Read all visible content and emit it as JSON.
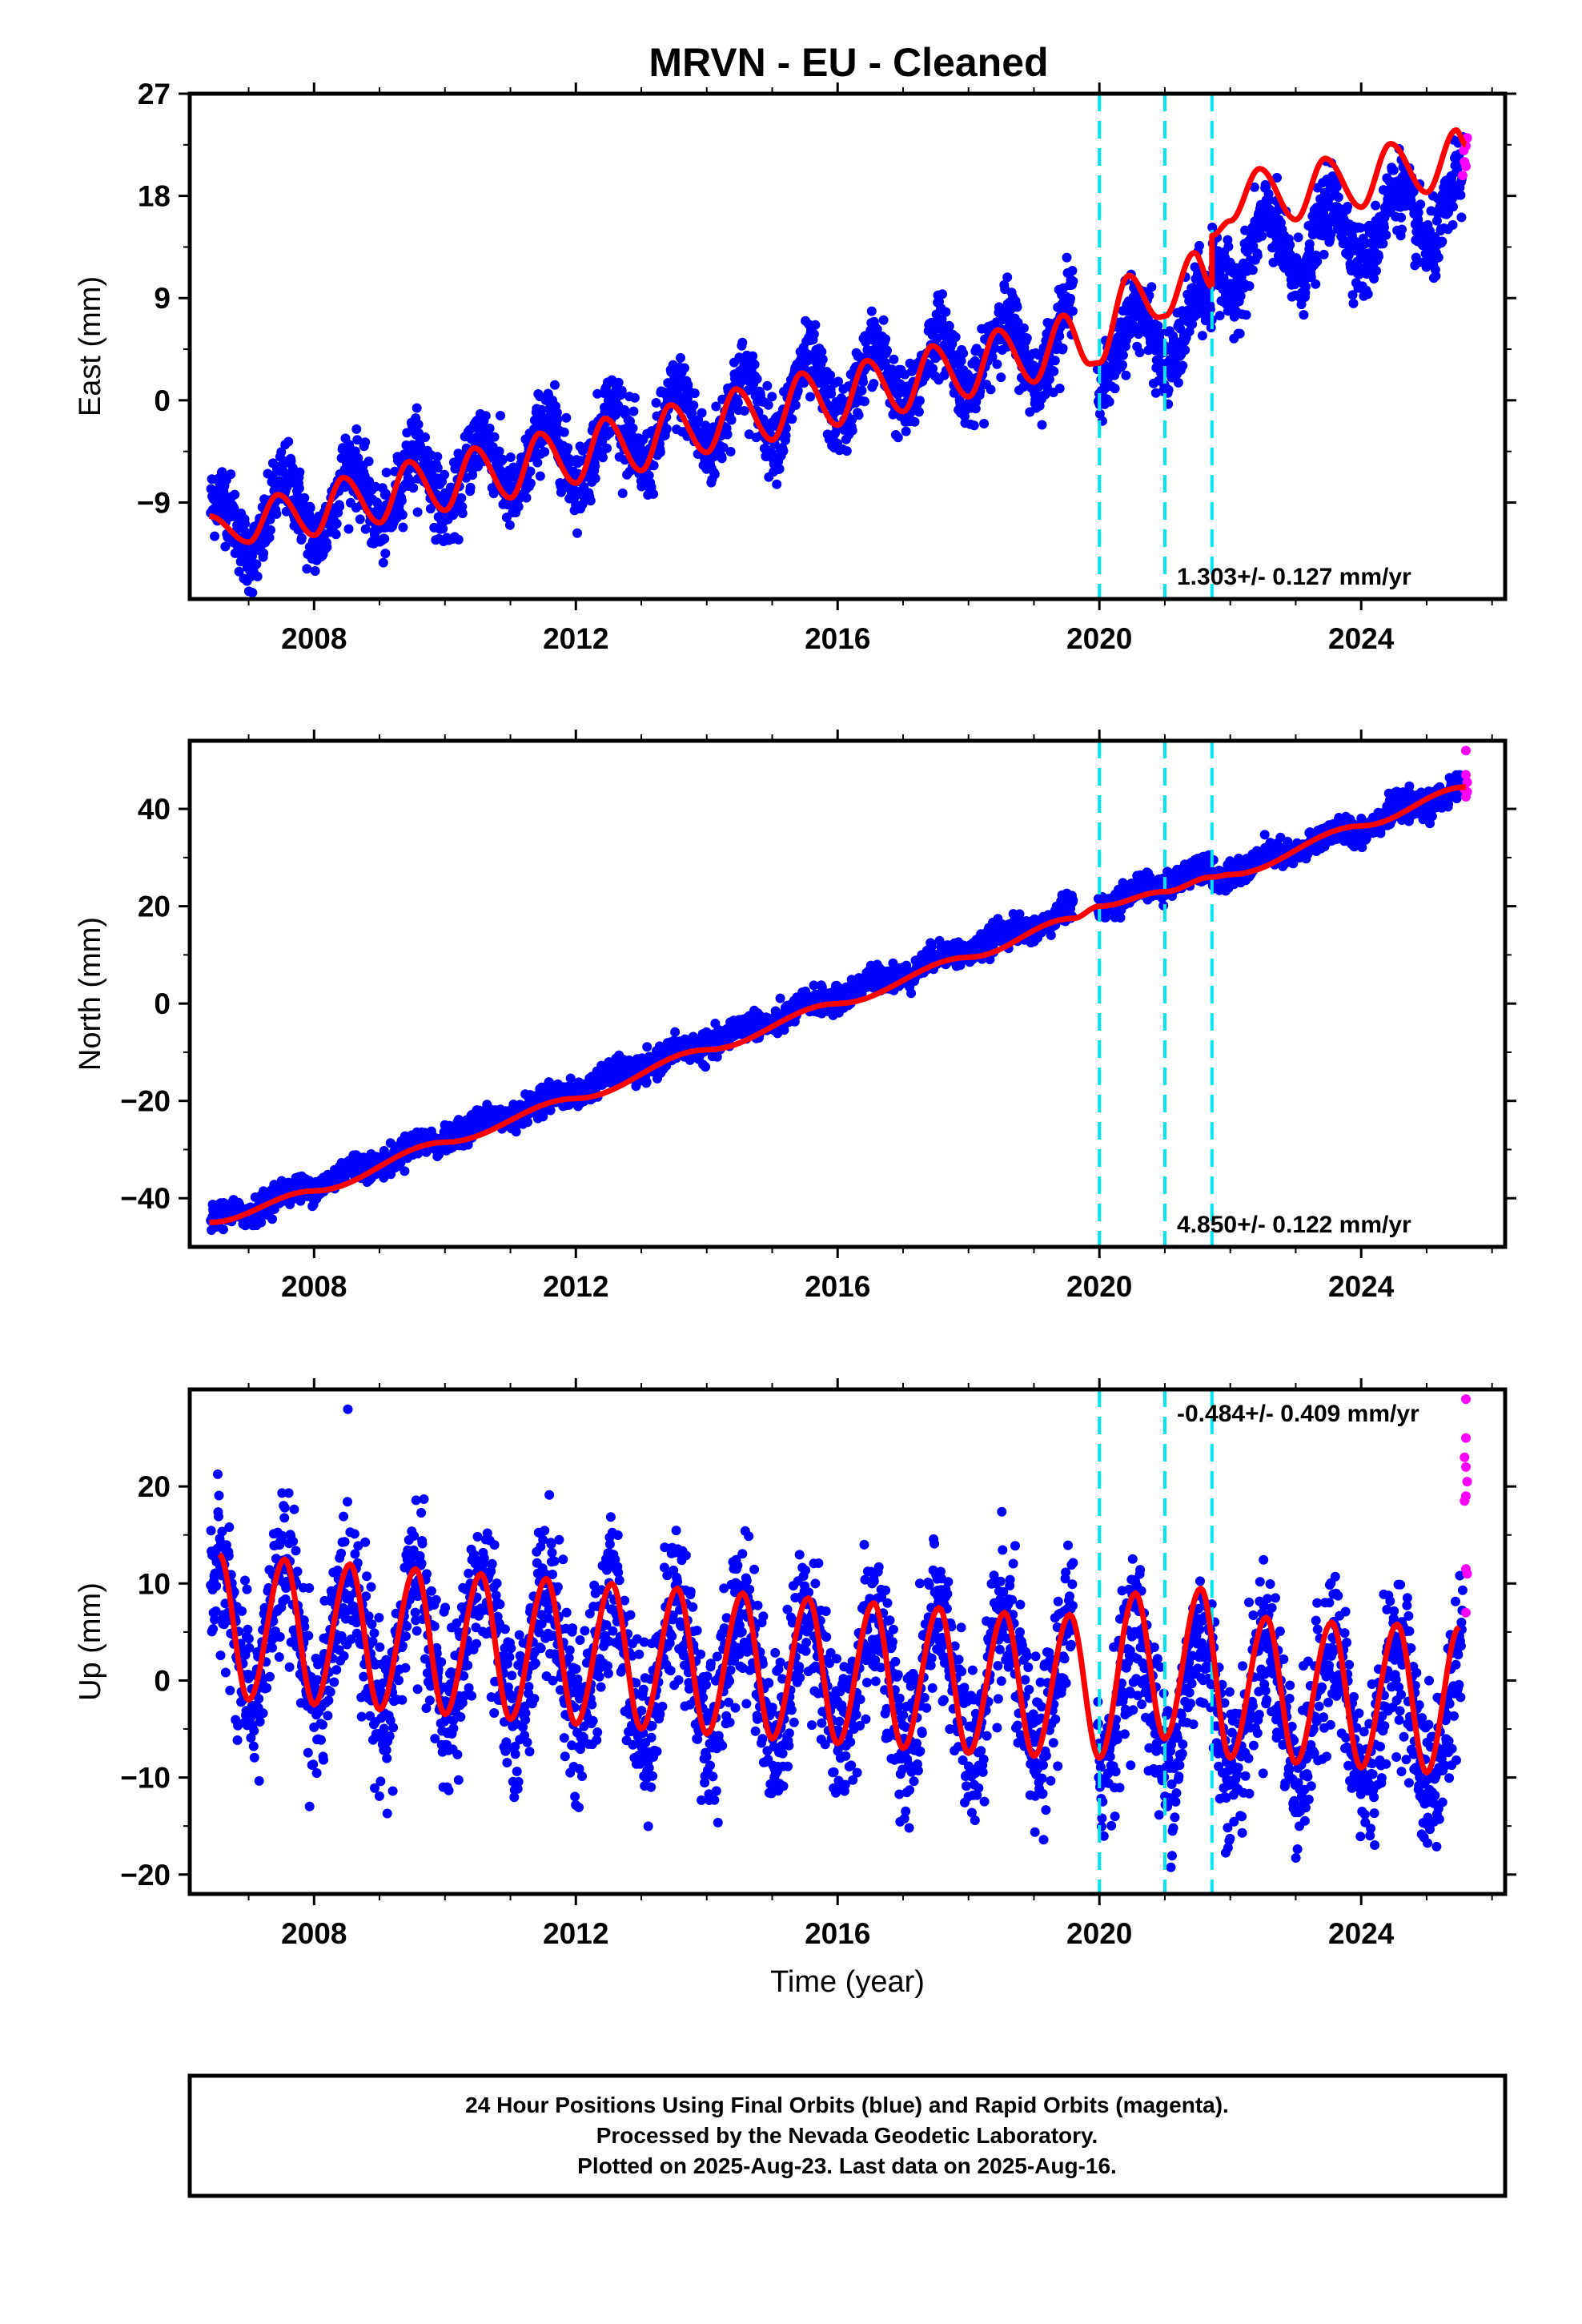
{
  "title": "MRVN  - EU - Cleaned",
  "footer": {
    "lines": [
      "24 Hour Positions Using Final Orbits (blue) and Rapid Orbits (magenta).",
      "Processed by the Nevada Geodetic Laboratory.",
      "Plotted on 2025-Aug-23. Last data on 2025-Aug-16."
    ]
  },
  "colors": {
    "final_orbits": "#0000ff",
    "rapid_orbits": "#ff00ff",
    "model": "#ff0000",
    "events": "#00e5ee",
    "frame": "#000000"
  },
  "chart_data": [
    {
      "type": "scatter",
      "component": "east",
      "ylabel": "East (mm)",
      "xlabel": "",
      "xlim": [
        2006.1,
        2026.2
      ],
      "ylim": [
        -17.5,
        27
      ],
      "yticks": [
        -9,
        0,
        9,
        18,
        27
      ],
      "xticks": [
        2008,
        2012,
        2016,
        2020,
        2024
      ],
      "rate_label": "1.303+/- 0.127 mm/yr",
      "rate_position": "bottom-right",
      "grid": false,
      "event_lines": [
        2020.0,
        2021.0,
        2021.72
      ],
      "trend_offsets": [
        {
          "t0": 2006.4,
          "y0": -11.5,
          "rate": 1.3
        },
        {
          "t0": 2020.0,
          "y0": 4.5,
          "rate": 1.3
        },
        {
          "t0": 2021.72,
          "y0": 12.0,
          "rate": 1.3
        }
      ],
      "seasonal_amplitude": 3.0,
      "noise": 1.6,
      "model_points": [
        [
          2006.4,
          -10.2
        ],
        [
          2007.0,
          -12.5
        ],
        [
          2007.45,
          -8.3
        ],
        [
          2008.0,
          -11.9
        ],
        [
          2008.45,
          -6.8
        ],
        [
          2009.0,
          -10.8
        ],
        [
          2009.45,
          -5.4
        ],
        [
          2010.0,
          -9.7
        ],
        [
          2010.45,
          -4.2
        ],
        [
          2011.0,
          -8.6
        ],
        [
          2011.45,
          -2.9
        ],
        [
          2012.0,
          -7.3
        ],
        [
          2012.45,
          -1.6
        ],
        [
          2013.0,
          -6.2
        ],
        [
          2013.45,
          -0.4
        ],
        [
          2014.0,
          -4.6
        ],
        [
          2014.45,
          1.0
        ],
        [
          2015.0,
          -3.5
        ],
        [
          2015.45,
          2.4
        ],
        [
          2016.0,
          -2.2
        ],
        [
          2016.45,
          3.5
        ],
        [
          2017.0,
          -1.0
        ],
        [
          2017.45,
          4.8
        ],
        [
          2018.0,
          0.3
        ],
        [
          2018.45,
          6.2
        ],
        [
          2019.0,
          1.6
        ],
        [
          2019.45,
          7.5
        ],
        [
          2019.85,
          3.2
        ],
        [
          2020.0,
          3.3
        ],
        [
          2020.45,
          11.0
        ],
        [
          2020.9,
          7.3
        ],
        [
          2021.0,
          7.4
        ],
        [
          2021.45,
          13.0
        ],
        [
          2021.72,
          10.0
        ],
        [
          2021.72,
          14.5
        ],
        [
          2022.0,
          15.8
        ],
        [
          2022.45,
          20.4
        ],
        [
          2023.0,
          15.9
        ],
        [
          2023.45,
          21.3
        ],
        [
          2024.0,
          17.0
        ],
        [
          2024.45,
          22.6
        ],
        [
          2025.0,
          18.3
        ],
        [
          2025.45,
          23.8
        ],
        [
          2025.6,
          22.5
        ]
      ],
      "rapid_points": [
        [
          2025.55,
          19.8
        ],
        [
          2025.58,
          21.0
        ],
        [
          2025.6,
          22.4
        ],
        [
          2025.62,
          23.1
        ],
        [
          2025.6,
          20.6
        ],
        [
          2025.57,
          22.0
        ]
      ]
    },
    {
      "type": "scatter",
      "component": "north",
      "ylabel": "North (mm)",
      "xlabel": "",
      "xlim": [
        2006.1,
        2026.2
      ],
      "ylim": [
        -50,
        54
      ],
      "yticks": [
        -40,
        -20,
        0,
        20,
        40
      ],
      "xticks": [
        2008,
        2012,
        2016,
        2020,
        2024
      ],
      "rate_label": "4.850+/- 0.122 mm/yr",
      "rate_position": "bottom-right",
      "grid": false,
      "event_lines": [
        2020.0,
        2021.0,
        2021.72
      ],
      "trend_offsets": [
        {
          "t0": 2006.4,
          "y0": -45.0,
          "rate": 4.85
        },
        {
          "t0": 2020.0,
          "y0": 20.0,
          "rate": 4.85
        },
        {
          "t0": 2021.72,
          "y0": 25.5,
          "rate": 4.85
        }
      ],
      "seasonal_amplitude": 1.0,
      "noise": 1.3,
      "model_points": [
        [
          2006.4,
          -45.0
        ],
        [
          2008.0,
          -38.5
        ],
        [
          2010.0,
          -28.5
        ],
        [
          2012.0,
          -19.5
        ],
        [
          2014.0,
          -9.5
        ],
        [
          2016.0,
          0.0
        ],
        [
          2018.0,
          9.5
        ],
        [
          2019.6,
          17.5
        ],
        [
          2020.0,
          20.0
        ],
        [
          2021.0,
          23.0
        ],
        [
          2021.72,
          26.0
        ],
        [
          2022.0,
          26.5
        ],
        [
          2024.0,
          36.5
        ],
        [
          2025.6,
          44.5
        ]
      ],
      "rapid_points": [
        [
          2025.6,
          52.0
        ],
        [
          2025.6,
          47.0
        ],
        [
          2025.62,
          45.5
        ],
        [
          2025.58,
          44.0
        ],
        [
          2025.6,
          42.5
        ],
        [
          2025.62,
          43.5
        ]
      ]
    },
    {
      "type": "scatter",
      "component": "up",
      "ylabel": "Up (mm)",
      "xlabel": "Time (year)",
      "xlim": [
        2006.1,
        2026.2
      ],
      "ylim": [
        -22,
        30
      ],
      "yticks": [
        -20,
        -10,
        0,
        10,
        20
      ],
      "xticks": [
        2008,
        2012,
        2016,
        2020,
        2024
      ],
      "rate_label": "-0.484+/- 0.409 mm/yr",
      "rate_position": "top-right",
      "grid": false,
      "event_lines": [
        2020.0,
        2021.0,
        2021.72
      ],
      "trend_offsets": [
        {
          "t0": 2006.4,
          "y0": 5.0,
          "rate": -0.48
        }
      ],
      "seasonal_amplitude": 7.0,
      "noise": 4.0,
      "model_points": [
        [
          2006.55,
          13.0
        ],
        [
          2007.0,
          -2.0
        ],
        [
          2007.55,
          12.5
        ],
        [
          2008.0,
          -2.5
        ],
        [
          2008.55,
          12.0
        ],
        [
          2009.0,
          -3.0
        ],
        [
          2009.55,
          11.5
        ],
        [
          2010.0,
          -3.5
        ],
        [
          2010.55,
          11.0
        ],
        [
          2011.0,
          -4.0
        ],
        [
          2011.55,
          10.5
        ],
        [
          2012.0,
          -4.5
        ],
        [
          2012.55,
          10.0
        ],
        [
          2013.0,
          -5.0
        ],
        [
          2013.55,
          9.5
        ],
        [
          2014.0,
          -5.5
        ],
        [
          2014.55,
          9.0
        ],
        [
          2015.0,
          -6.0
        ],
        [
          2015.55,
          8.5
        ],
        [
          2016.0,
          -6.5
        ],
        [
          2016.55,
          8.0
        ],
        [
          2017.0,
          -7.0
        ],
        [
          2017.55,
          7.5
        ],
        [
          2018.0,
          -7.5
        ],
        [
          2018.55,
          7.0
        ],
        [
          2019.0,
          -7.8
        ],
        [
          2019.55,
          6.8
        ],
        [
          2020.0,
          -8.0
        ],
        [
          2020.55,
          9.0
        ],
        [
          2021.0,
          -6.0
        ],
        [
          2021.55,
          9.5
        ],
        [
          2022.0,
          -8.0
        ],
        [
          2022.55,
          6.5
        ],
        [
          2023.0,
          -8.5
        ],
        [
          2023.55,
          6.0
        ],
        [
          2024.0,
          -9.0
        ],
        [
          2024.55,
          5.8
        ],
        [
          2025.0,
          -9.5
        ],
        [
          2025.5,
          5.5
        ]
      ],
      "rapid_points": [
        [
          2025.6,
          29.0
        ],
        [
          2025.6,
          25.0
        ],
        [
          2025.58,
          23.0
        ],
        [
          2025.6,
          22.0
        ],
        [
          2025.62,
          20.5
        ],
        [
          2025.6,
          19.0
        ],
        [
          2025.58,
          18.5
        ],
        [
          2025.6,
          11.5
        ],
        [
          2025.62,
          11.0
        ],
        [
          2025.6,
          7.0
        ]
      ]
    }
  ]
}
